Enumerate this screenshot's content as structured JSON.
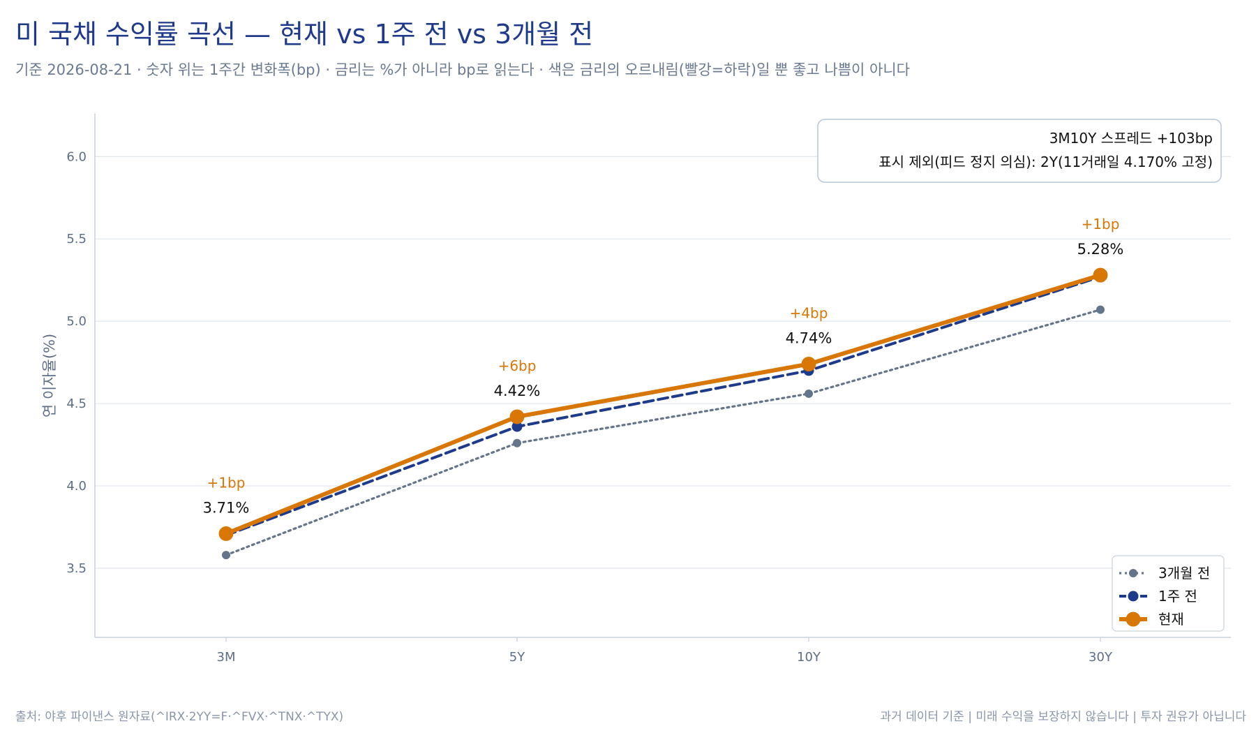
{
  "header": {
    "title": "미 국채 수익률 곡선 — 현재 vs 1주 전 vs 3개월 전",
    "subtitle": "기준 2026-08-21 · 숫자 위는 1주간 변화폭(bp) · 금리는 %가 아니라 bp로 읽는다 · 색은 금리의 오르내림(빨강=하락)일 뿐 좋고 나쁨이 아니다"
  },
  "footer": {
    "source": "출처: 야후 파이낸스 원자료(^IRX·2YY=F·^FVX·^TNX·^TYX)",
    "disclaimer": "과거 데이터 기준 | 미래 수익을 보장하지 않습니다 | 투자 권유가 아닙니다"
  },
  "info_box": {
    "line1": "3M10Y 스프레드 +103bp",
    "line2": "표시 제외(피드 정지 의심): 2Y(11거래일 4.170% 고정)"
  },
  "chart_data": {
    "type": "line",
    "categories": [
      "3M",
      "5Y",
      "10Y",
      "30Y"
    ],
    "ylabel": "연 이자율(%)",
    "xlabel": "",
    "ylim": [
      3.08,
      6.26
    ],
    "yticks": [
      "3.5",
      "4.0",
      "4.5",
      "5.0",
      "5.5",
      "6.0"
    ],
    "grid": true,
    "legend_position": "bottom-right",
    "series": [
      {
        "name": "3개월 전",
        "values": [
          3.58,
          4.26,
          4.56,
          5.07
        ],
        "color": "#64748b",
        "style": "dotted"
      },
      {
        "name": "1주 전",
        "values": [
          3.7,
          4.36,
          4.7,
          5.27
        ],
        "color": "#1e3a8a",
        "style": "dashed"
      },
      {
        "name": "현재",
        "values": [
          3.71,
          4.42,
          4.74,
          5.28
        ],
        "color": "#d97706",
        "style": "solid"
      }
    ],
    "value_labels": [
      "3.71%",
      "4.42%",
      "4.74%",
      "5.28%"
    ],
    "change_labels": [
      "+1bp",
      "+6bp",
      "+4bp",
      "+1bp"
    ]
  }
}
